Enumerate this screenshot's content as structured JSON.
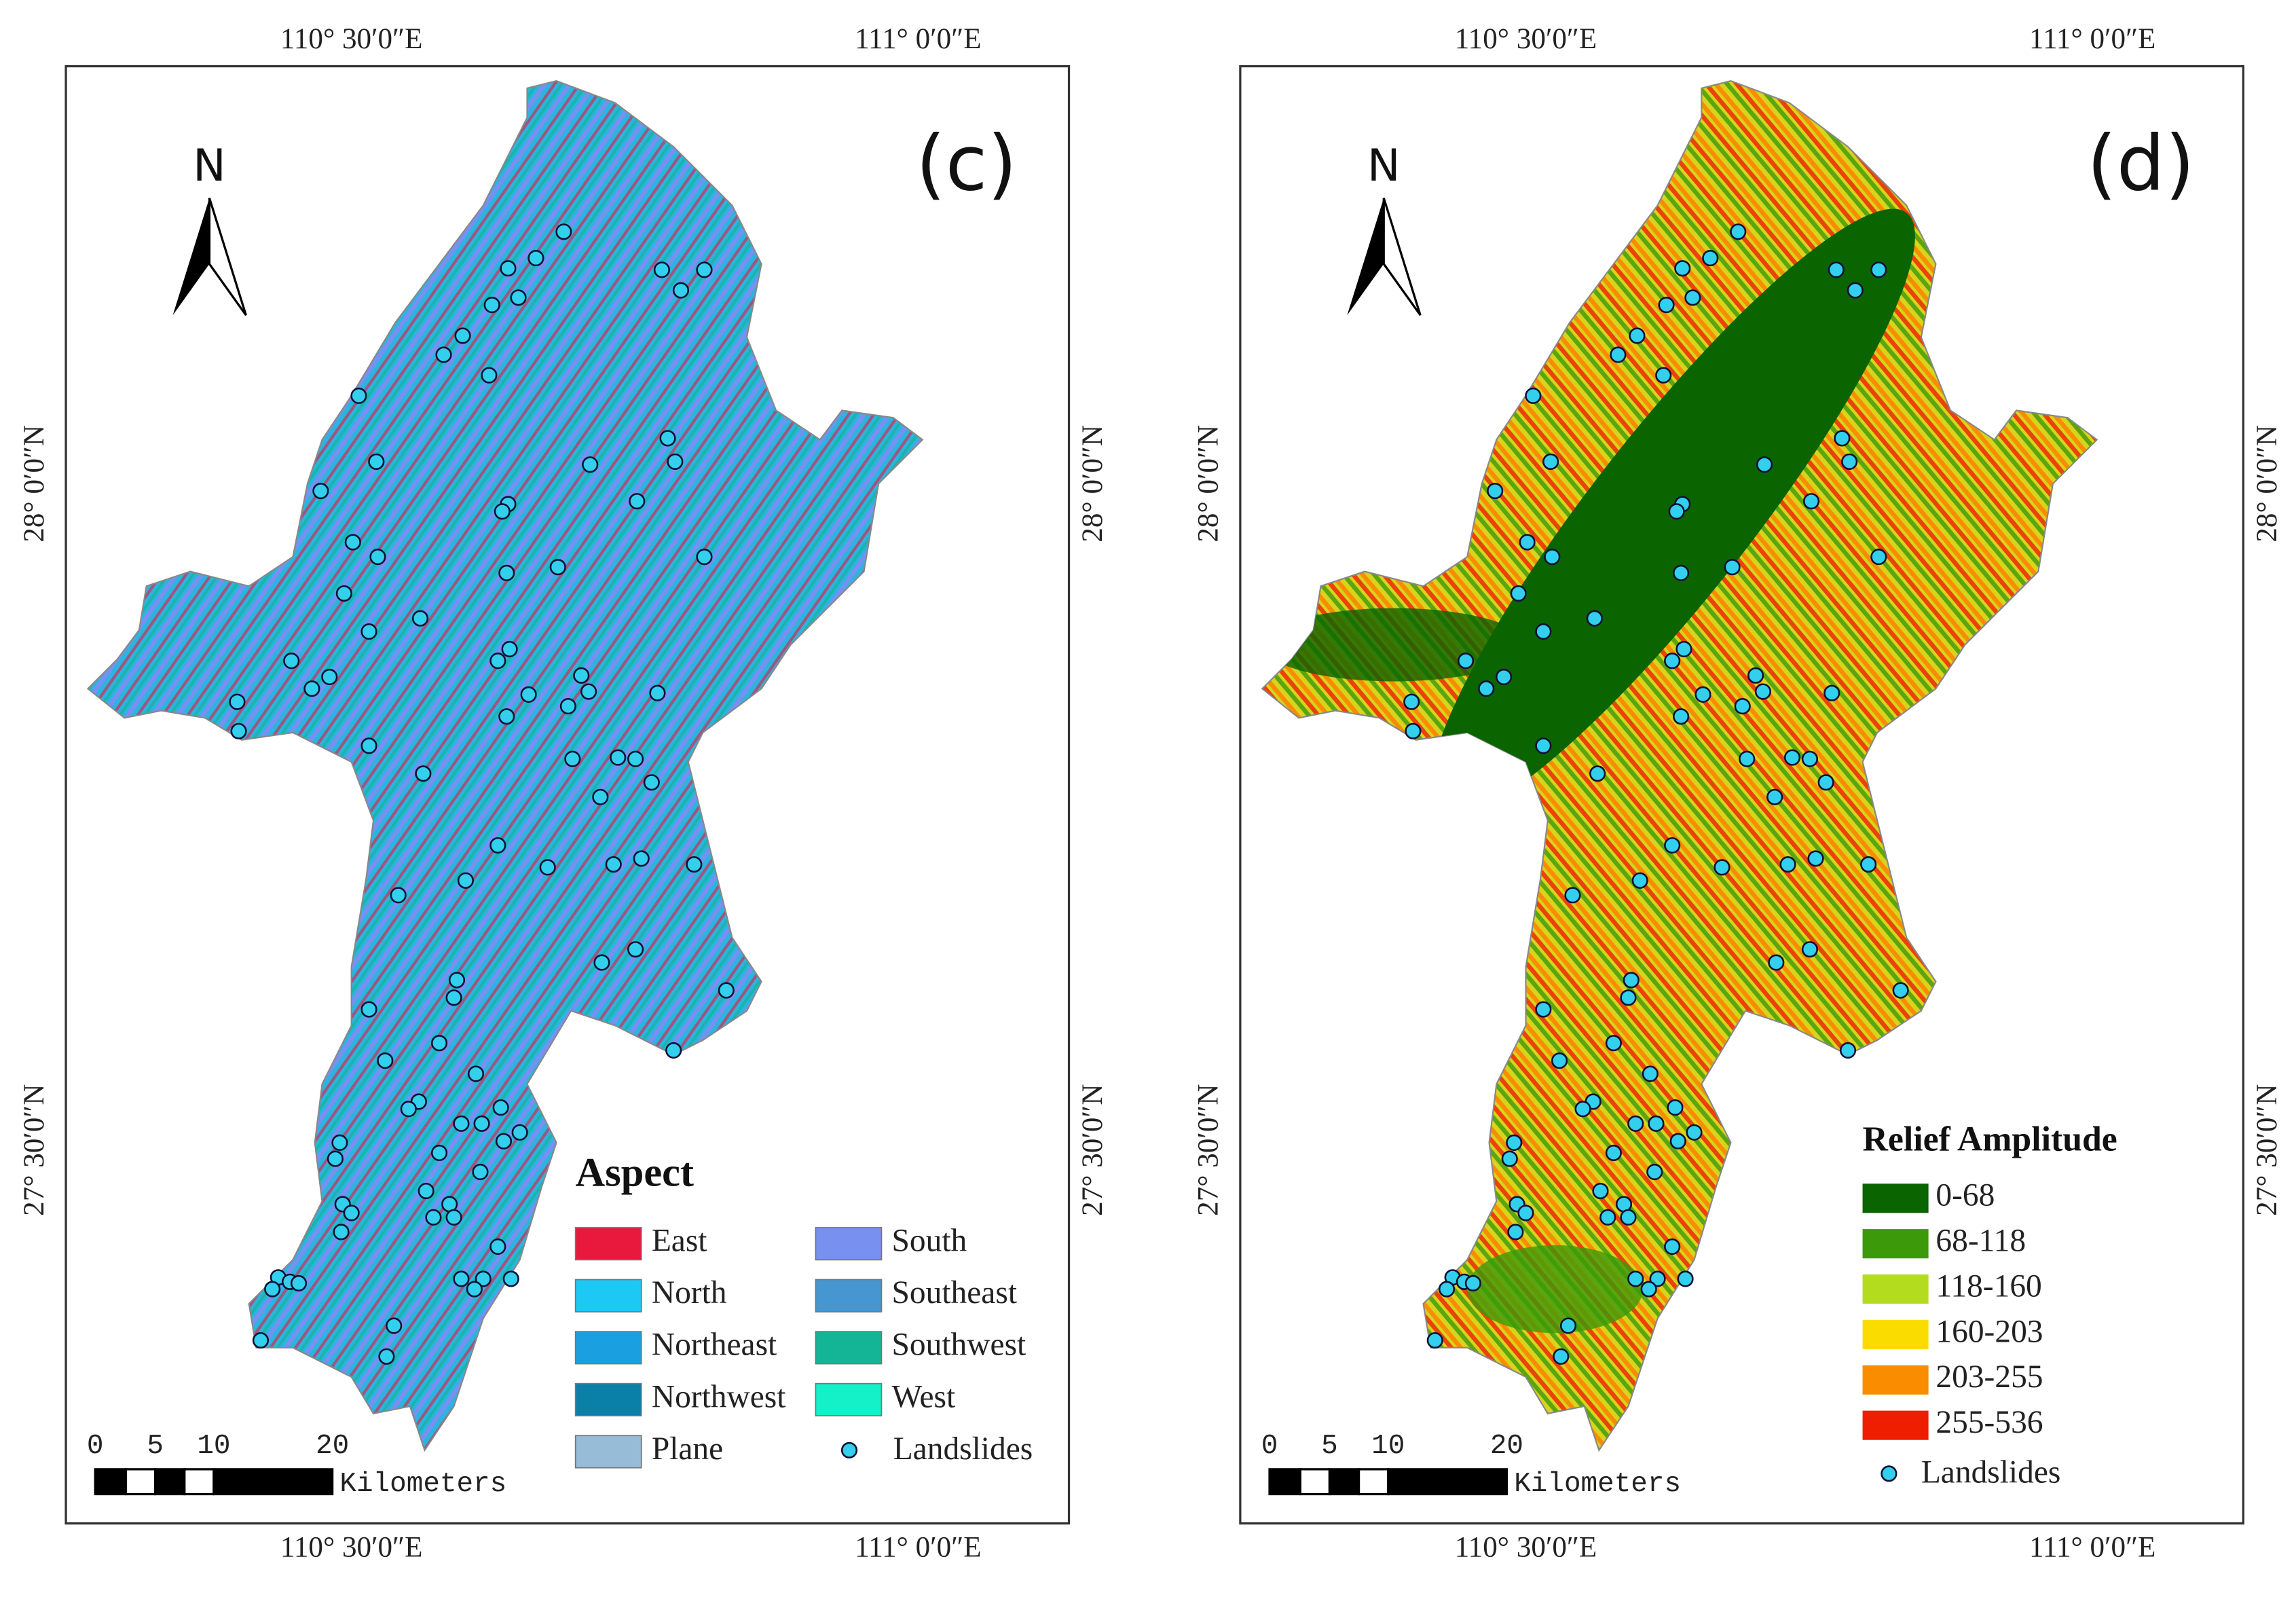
{
  "panels": [
    {
      "label": "(c)",
      "north": "N",
      "top_labels": [
        "110° 30′0″E",
        "111° 0′0″E"
      ],
      "bottom_labels": [
        "110° 30′0″E",
        "111° 0′0″E"
      ],
      "left_labels": [
        "28° 0′0″N",
        "27° 30′0″N"
      ],
      "right_labels": [
        "28° 0′0″N",
        "27° 30′0″N"
      ],
      "legend": {
        "title": "Aspect",
        "items": [
          {
            "name": "East",
            "color": "#e8193c"
          },
          {
            "name": "North",
            "color": "#1ec8f5"
          },
          {
            "name": "Northeast",
            "color": "#1aa0e0"
          },
          {
            "name": "Northwest",
            "color": "#0a80a8"
          },
          {
            "name": "Plane",
            "color": "#96bcd8"
          },
          {
            "name": "South",
            "color": "#7890f0"
          },
          {
            "name": "Southeast",
            "color": "#4696d2"
          },
          {
            "name": "Southwest",
            "color": "#14b496"
          },
          {
            "name": "West",
            "color": "#14f0c8"
          }
        ],
        "points": "Landslides"
      },
      "scale": {
        "ticks": [
          "0",
          "5",
          "10",
          "20"
        ],
        "unit": "Kilometers"
      }
    },
    {
      "label": "(d)",
      "north": "N",
      "top_labels": [
        "110° 30′0″E",
        "111° 0′0″E"
      ],
      "bottom_labels": [
        "110° 30′0″E",
        "111° 0′0″E"
      ],
      "left_labels": [
        "28° 0′0″N",
        "27° 30′0″N"
      ],
      "right_labels": [
        "28° 0′0″N",
        "27° 30′0″N"
      ],
      "legend": {
        "title": "Relief Amplitude",
        "items": [
          {
            "name": "0-68",
            "color": "#0a6400"
          },
          {
            "name": "68-118",
            "color": "#3c9a0a"
          },
          {
            "name": "118-160",
            "color": "#b4dc1e"
          },
          {
            "name": "160-203",
            "color": "#fadc00"
          },
          {
            "name": "203-255",
            "color": "#fa8c00"
          },
          {
            "name": "255-536",
            "color": "#f01e00"
          }
        ],
        "points": "Landslides"
      },
      "scale": {
        "ticks": [
          "0",
          "5",
          "10",
          "20"
        ],
        "unit": "Kilometers"
      }
    }
  ]
}
